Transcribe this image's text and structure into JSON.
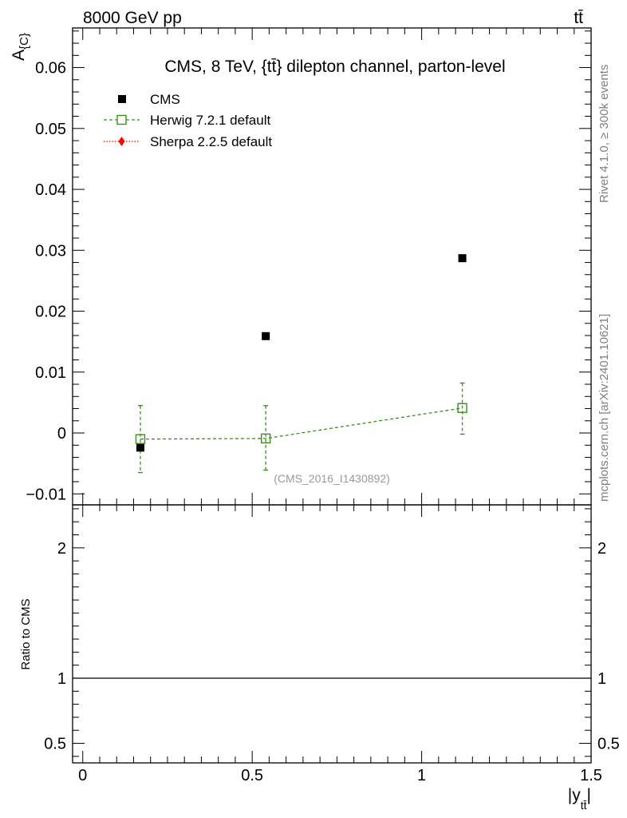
{
  "header": {
    "left": "8000 GeV pp",
    "right": "tt̄"
  },
  "side_labels": {
    "rivet": "Rivet 4.1.0, ≥ 300k events",
    "mcplots": "mcplots.cern.ch [arXiv:2401.10621]"
  },
  "colors": {
    "cms": "#000000",
    "herwig": "#3a8f1a",
    "sherpa": "#ff0000"
  },
  "chart_data": [
    {
      "type": "scatter",
      "title": "CMS, 8 TeV, {tt̄} dilepton channel, parton-level",
      "ylabel_main": "A",
      "ylabel_sub": "{C}",
      "watermark": "(CMS_2016_I1430892)",
      "xlim": [
        -0.03,
        1.5
      ],
      "ylim": [
        -0.0118,
        0.0665
      ],
      "ytick_labels": [
        "−0.01",
        "0",
        "0.01",
        "0.02",
        "0.03",
        "0.04",
        "0.05",
        "0.06"
      ],
      "ytick_values": [
        -0.01,
        0,
        0.01,
        0.02,
        0.03,
        0.04,
        0.05,
        0.06
      ],
      "legend": [
        "CMS",
        "Herwig 7.2.1 default",
        "Sherpa 2.2.5 default"
      ],
      "legend_position": "top-left",
      "series": [
        {
          "name": "CMS",
          "x": [
            0.17,
            0.54,
            1.12
          ],
          "y": [
            -0.0024,
            0.0159,
            0.0287
          ]
        },
        {
          "name": "Herwig 7.2.1 default",
          "x": [
            0.17,
            0.54,
            1.12
          ],
          "y": [
            -0.001,
            -0.0009,
            0.0041
          ],
          "err_up": [
            0.0055,
            0.0054,
            0.0041
          ],
          "err_down": [
            0.0055,
            0.0052,
            0.0043
          ]
        },
        {
          "name": "Sherpa 2.2.5 default",
          "x": [],
          "y": []
        }
      ]
    },
    {
      "type": "line",
      "ylabel": "Ratio to CMS",
      "xlabel_main": "|y",
      "xlabel_sub": "tt̄",
      "xlabel_end": "|",
      "xlim": [
        -0.03,
        1.5
      ],
      "ylim": [
        0.35,
        2.33
      ],
      "xtick_labels": [
        "0",
        "0.5",
        "1",
        "1.5"
      ],
      "xtick_values": [
        0,
        0.5,
        1,
        1.5
      ],
      "ytick_labels": [
        "0.5",
        "1",
        "2"
      ],
      "ytick_values": [
        0.5,
        1,
        2
      ],
      "reference_line": 1
    }
  ]
}
